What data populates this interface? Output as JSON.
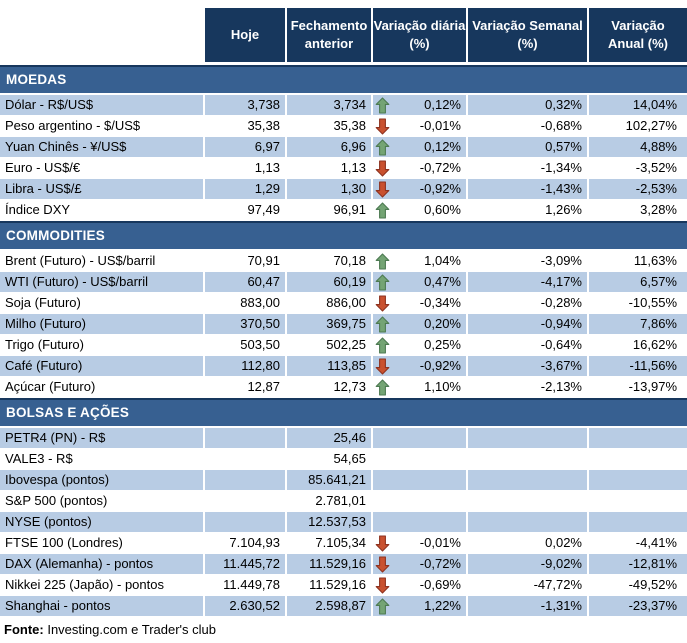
{
  "chart_data": {
    "type": "table",
    "columns": [
      {
        "id": "hoje",
        "label": "Hoje"
      },
      {
        "id": "fechamento-anterior",
        "label": "Fechamento\nanterior"
      },
      {
        "id": "variacao-diaria",
        "label": "Variação diária\n(%)"
      },
      {
        "id": "variacao-semanal",
        "label": "Variação Semanal\n(%)"
      },
      {
        "id": "variacao-anual",
        "label": "Variação\nAnual (%)"
      }
    ],
    "sections": [
      {
        "id": "moedas",
        "title": "MOEDAS",
        "first_row_shaded": true,
        "rows": [
          {
            "label": "Dólar - R$/US$",
            "hoje": "3,738",
            "fechamento_anterior": "3,734",
            "arrow": "up",
            "variacao_diaria": "0,12%",
            "variacao_semanal": "0,32%",
            "variacao_anual": "14,04%"
          },
          {
            "label": "Peso argentino - $/US$",
            "hoje": "35,38",
            "fechamento_anterior": "35,38",
            "arrow": "down",
            "variacao_diaria": "-0,01%",
            "variacao_semanal": "-0,68%",
            "variacao_anual": "102,27%"
          },
          {
            "label": "Yuan Chinês - ¥/US$",
            "hoje": "6,97",
            "fechamento_anterior": "6,96",
            "arrow": "up",
            "variacao_diaria": "0,12%",
            "variacao_semanal": "0,57%",
            "variacao_anual": "4,88%"
          },
          {
            "label": "Euro - US$/€",
            "hoje": "1,13",
            "fechamento_anterior": "1,13",
            "arrow": "down",
            "variacao_diaria": "-0,72%",
            "variacao_semanal": "-1,34%",
            "variacao_anual": "-3,52%"
          },
          {
            "label": "Libra - US$/£",
            "hoje": "1,29",
            "fechamento_anterior": "1,30",
            "arrow": "down",
            "variacao_diaria": "-0,92%",
            "variacao_semanal": "-1,43%",
            "variacao_anual": "-2,53%"
          },
          {
            "label": "Índice DXY",
            "hoje": "97,49",
            "fechamento_anterior": "96,91",
            "arrow": "up",
            "variacao_diaria": "0,60%",
            "variacao_semanal": "1,26%",
            "variacao_anual": "3,28%"
          }
        ]
      },
      {
        "id": "commodities",
        "title": "COMMODITIES",
        "first_row_shaded": false,
        "rows": [
          {
            "label": "Brent (Futuro) - US$/barril",
            "hoje": "70,91",
            "fechamento_anterior": "70,18",
            "arrow": "up",
            "variacao_diaria": "1,04%",
            "variacao_semanal": "-3,09%",
            "variacao_anual": "11,63%"
          },
          {
            "label": "WTI (Futuro) - US$/barril",
            "hoje": "60,47",
            "fechamento_anterior": "60,19",
            "arrow": "up",
            "variacao_diaria": "0,47%",
            "variacao_semanal": "-4,17%",
            "variacao_anual": "6,57%"
          },
          {
            "label": "Soja (Futuro)",
            "hoje": "883,00",
            "fechamento_anterior": "886,00",
            "arrow": "down",
            "variacao_diaria": "-0,34%",
            "variacao_semanal": "-0,28%",
            "variacao_anual": "-10,55%"
          },
          {
            "label": "Milho (Futuro)",
            "hoje": "370,50",
            "fechamento_anterior": "369,75",
            "arrow": "up",
            "variacao_diaria": "0,20%",
            "variacao_semanal": "-0,94%",
            "variacao_anual": "7,86%"
          },
          {
            "label": "Trigo (Futuro)",
            "hoje": "503,50",
            "fechamento_anterior": "502,25",
            "arrow": "up",
            "variacao_diaria": "0,25%",
            "variacao_semanal": "-0,64%",
            "variacao_anual": "16,62%"
          },
          {
            "label": "Café (Futuro)",
            "hoje": "112,80",
            "fechamento_anterior": "113,85",
            "arrow": "down",
            "variacao_diaria": "-0,92%",
            "variacao_semanal": "-3,67%",
            "variacao_anual": "-11,56%"
          },
          {
            "label": "Açúcar (Futuro)",
            "hoje": "12,87",
            "fechamento_anterior": "12,73",
            "arrow": "up",
            "variacao_diaria": "1,10%",
            "variacao_semanal": "-2,13%",
            "variacao_anual": "-13,97%"
          }
        ]
      },
      {
        "id": "bolsas-e-acoes",
        "title": "BOLSAS E AÇÕES",
        "first_row_shaded": true,
        "rows": [
          {
            "label": "PETR4 (PN) - R$",
            "hoje": "",
            "fechamento_anterior": "25,46",
            "arrow": null,
            "variacao_diaria": "",
            "variacao_semanal": "",
            "variacao_anual": ""
          },
          {
            "label": "VALE3 - R$",
            "hoje": "",
            "fechamento_anterior": "54,65",
            "arrow": null,
            "variacao_diaria": "",
            "variacao_semanal": "",
            "variacao_anual": ""
          },
          {
            "label": "Ibovespa (pontos)",
            "hoje": "",
            "fechamento_anterior": "85.641,21",
            "arrow": null,
            "variacao_diaria": "",
            "variacao_semanal": "",
            "variacao_anual": ""
          },
          {
            "label": "S&P 500 (pontos)",
            "hoje": "",
            "fechamento_anterior": "2.781,01",
            "arrow": null,
            "variacao_diaria": "",
            "variacao_semanal": "",
            "variacao_anual": ""
          },
          {
            "label": "NYSE (pontos)",
            "hoje": "",
            "fechamento_anterior": "12.537,53",
            "arrow": null,
            "variacao_diaria": "",
            "variacao_semanal": "",
            "variacao_anual": ""
          },
          {
            "label": "FTSE 100 (Londres)",
            "hoje": "7.104,93",
            "fechamento_anterior": "7.105,34",
            "arrow": "down",
            "variacao_diaria": "-0,01%",
            "variacao_semanal": "0,02%",
            "variacao_anual": "-4,41%"
          },
          {
            "label": "DAX (Alemanha) - pontos",
            "hoje": "11.445,72",
            "fechamento_anterior": "11.529,16",
            "arrow": "down",
            "variacao_diaria": "-0,72%",
            "variacao_semanal": "-9,02%",
            "variacao_anual": "-12,81%"
          },
          {
            "label": "Nikkei 225 (Japão) - pontos",
            "hoje": "11.449,78",
            "fechamento_anterior": "11.529,16",
            "arrow": "down",
            "variacao_diaria": "-0,69%",
            "variacao_semanal": "-47,72%",
            "variacao_anual": "-49,52%"
          },
          {
            "label": "Shanghai - pontos",
            "hoje": "2.630,52",
            "fechamento_anterior": "2.598,87",
            "arrow": "up",
            "variacao_diaria": "1,22%",
            "variacao_semanal": "-1,31%",
            "variacao_anual": "-23,37%"
          }
        ]
      }
    ]
  },
  "footer": {
    "source_label": "Fonte:",
    "source_text": " Investing.com e Trader's club"
  },
  "colors": {
    "header_bg": "#17375D",
    "band_bg": "#376091",
    "band_border": "#17375D",
    "row_shaded": "#B8CCE4",
    "header_text": "#FFFFFF",
    "text": "#000000",
    "arrow_up_fill": "#74A474",
    "arrow_up_stroke": "#4D7A52",
    "arrow_down_fill": "#C9512F",
    "arrow_down_stroke": "#8E3320"
  },
  "icons": {
    "up": "up-arrow-icon",
    "down": "down-arrow-icon"
  }
}
